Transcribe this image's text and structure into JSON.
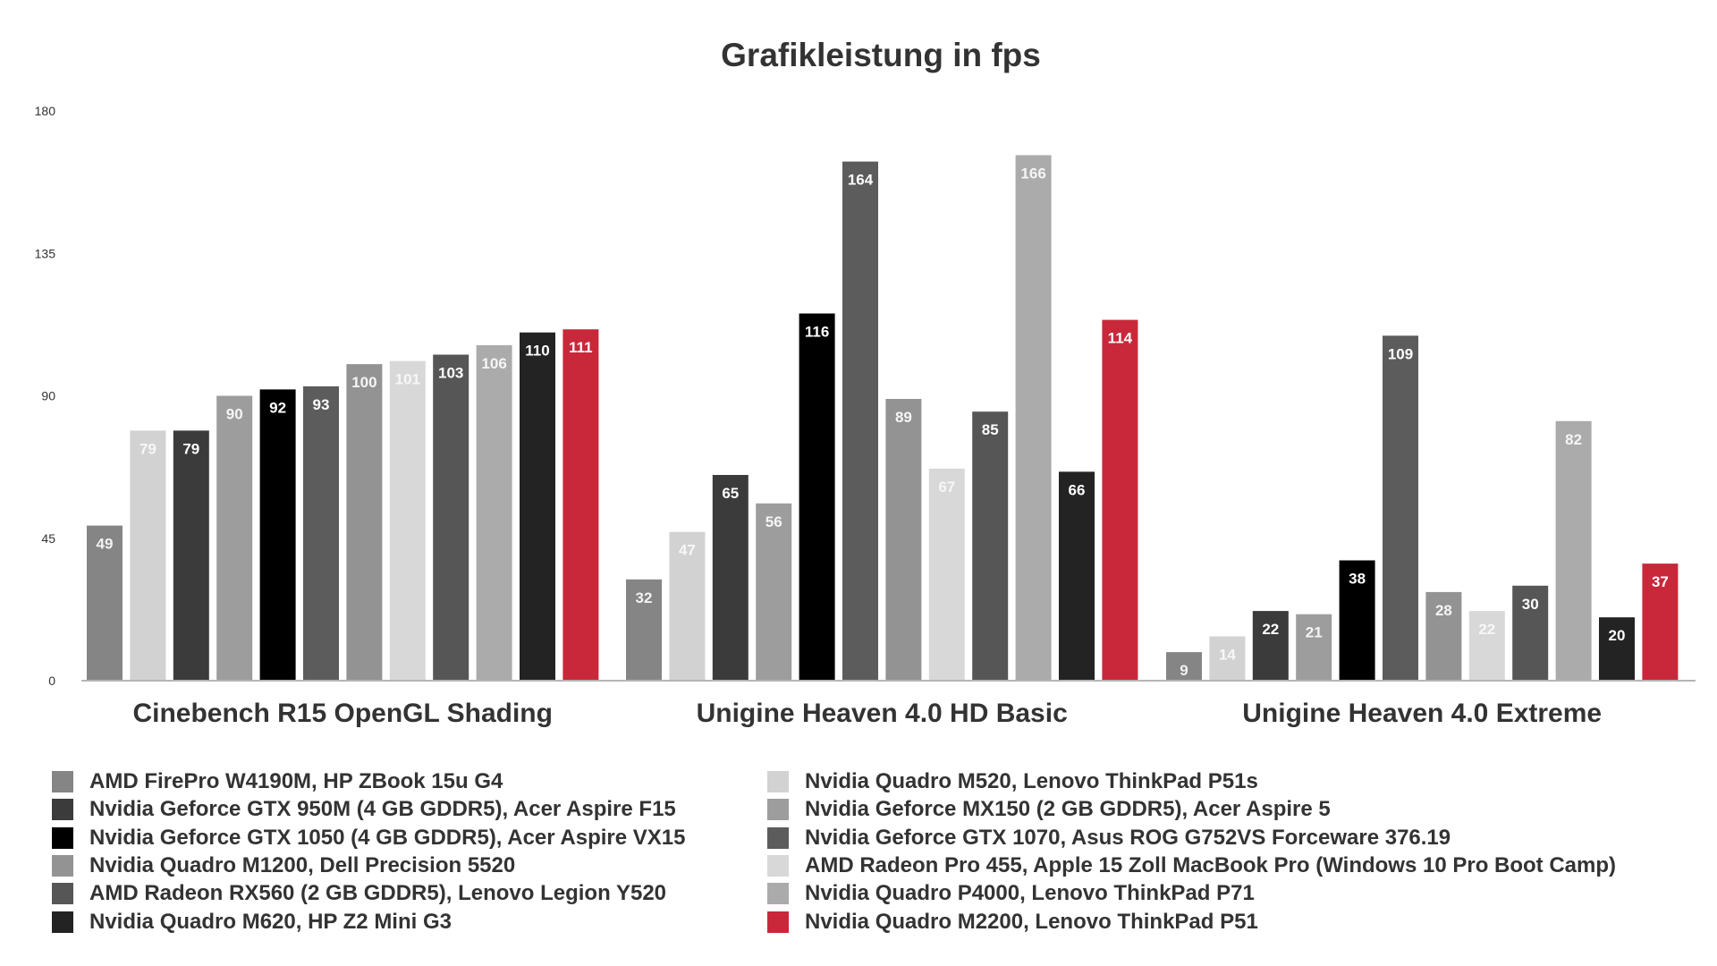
{
  "chart_data": {
    "type": "bar",
    "title": "Grafikleistung in fps",
    "xlabel": "",
    "ylabel": "",
    "ylim": [
      0,
      180
    ],
    "yticks": [
      0,
      45,
      90,
      135,
      180
    ],
    "grid": false,
    "legend_position": "bottom",
    "categories": [
      "Cinebench R15 OpenGL Shading",
      "Unigine Heaven 4.0 HD Basic",
      "Unigine Heaven 4.0 Extreme"
    ],
    "series": [
      {
        "name": "AMD FirePro W4190M, HP ZBook 15u G4",
        "color": "#858585",
        "label_color": "#f2f2f2",
        "values": [
          49,
          32,
          9
        ]
      },
      {
        "name": "Nvidia Quadro M520, Lenovo ThinkPad P51s",
        "color": "#d2d2d2",
        "label_color": "#f7f7f7",
        "values": [
          79,
          47,
          14
        ]
      },
      {
        "name": "Nvidia Geforce GTX 950M (4 GB GDDR5), Acer Aspire F15",
        "color": "#3b3b3b",
        "label_color": "#ffffff",
        "values": [
          79,
          65,
          22
        ]
      },
      {
        "name": "Nvidia Geforce MX150 (2 GB GDDR5), Acer Aspire 5",
        "color": "#9d9d9d",
        "label_color": "#f5f5f5",
        "values": [
          90,
          56,
          21
        ]
      },
      {
        "name": "Nvidia Geforce GTX 1050 (4 GB GDDR5), Acer Aspire VX15",
        "color": "#000000",
        "label_color": "#ffffff",
        "values": [
          92,
          116,
          38
        ]
      },
      {
        "name": "Nvidia Geforce GTX 1070, Asus ROG G752VS Forceware 376.19",
        "color": "#5c5c5c",
        "label_color": "#ffffff",
        "values": [
          93,
          164,
          109
        ]
      },
      {
        "name": "Nvidia Quadro M1200, Dell Precision 5520",
        "color": "#939393",
        "label_color": "#f5f5f5",
        "values": [
          100,
          89,
          28
        ]
      },
      {
        "name": "AMD Radeon Pro 455, Apple 15 Zoll MacBook Pro (Windows 10 Pro Boot Camp)",
        "color": "#d8d8d8",
        "label_color": "#f7f7f7",
        "values": [
          101,
          67,
          22
        ]
      },
      {
        "name": "AMD Radeon RX560 (2 GB GDDR5), Lenovo Legion Y520",
        "color": "#565656",
        "label_color": "#ffffff",
        "values": [
          103,
          85,
          30
        ]
      },
      {
        "name": "Nvidia Quadro P4000, Lenovo ThinkPad P71",
        "color": "#ababab",
        "label_color": "#f5f5f5",
        "values": [
          106,
          166,
          82
        ]
      },
      {
        "name": "Nvidia Quadro M620, HP Z2 Mini G3",
        "color": "#232323",
        "label_color": "#ffffff",
        "values": [
          110,
          66,
          20
        ]
      },
      {
        "name": "Nvidia Quadro M2200, Lenovo ThinkPad P51",
        "color": "#c9283a",
        "label_color": "#ffffff",
        "values": [
          111,
          114,
          37
        ]
      }
    ],
    "legend": {
      "left_column": [
        0,
        2,
        4,
        6,
        8,
        10
      ],
      "right_column": [
        1,
        3,
        5,
        7,
        9,
        11
      ]
    }
  }
}
